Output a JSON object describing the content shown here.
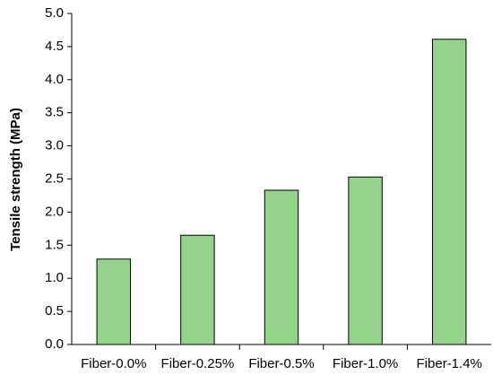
{
  "chart_data": {
    "type": "bar",
    "y_label": "Tensile strength (MPa)",
    "categories": [
      "Fiber-0.0%",
      "Fiber-0.25%",
      "Fiber-0.5%",
      "Fiber-1.0%",
      "Fiber-1.4%"
    ],
    "values": [
      1.29,
      1.65,
      2.33,
      2.53,
      4.61
    ],
    "color": "#93d38a",
    "ylim": [
      0,
      5
    ],
    "yticks": [
      {
        "value": 0,
        "label": "0.0"
      },
      0.5,
      {
        "value": 1,
        "label": "1.0"
      },
      1.5,
      {
        "value": 2,
        "label": "2.0"
      },
      2.5,
      {
        "value": 3,
        "label": "3.0"
      },
      3.5,
      {
        "value": 4,
        "label": "4.0"
      },
      4.5,
      {
        "value": 5,
        "label": "5.0"
      }
    ],
    "grid": false
  }
}
